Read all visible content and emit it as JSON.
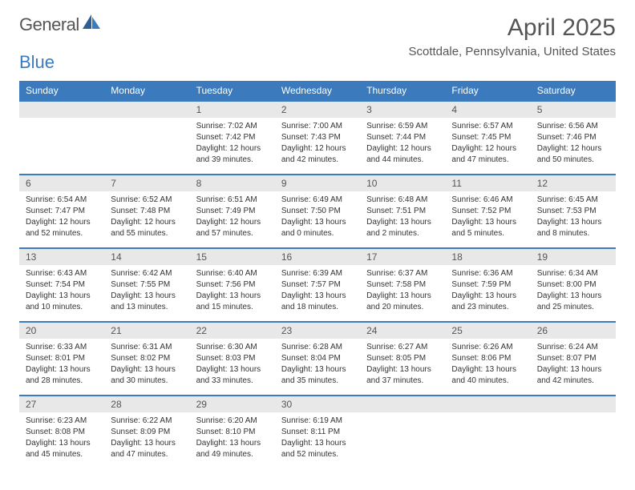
{
  "brand": {
    "part1": "General",
    "part2": "Blue"
  },
  "title": "April 2025",
  "location": "Scottdale, Pennsylvania, United States",
  "colors": {
    "accent": "#3a7abd",
    "gray_bg": "#e8e8e8",
    "text": "#555"
  },
  "weekdays": [
    "Sunday",
    "Monday",
    "Tuesday",
    "Wednesday",
    "Thursday",
    "Friday",
    "Saturday"
  ],
  "weeks": [
    [
      null,
      null,
      {
        "n": "1",
        "sr": "7:02 AM",
        "ss": "7:42 PM",
        "dl": "12 hours and 39 minutes."
      },
      {
        "n": "2",
        "sr": "7:00 AM",
        "ss": "7:43 PM",
        "dl": "12 hours and 42 minutes."
      },
      {
        "n": "3",
        "sr": "6:59 AM",
        "ss": "7:44 PM",
        "dl": "12 hours and 44 minutes."
      },
      {
        "n": "4",
        "sr": "6:57 AM",
        "ss": "7:45 PM",
        "dl": "12 hours and 47 minutes."
      },
      {
        "n": "5",
        "sr": "6:56 AM",
        "ss": "7:46 PM",
        "dl": "12 hours and 50 minutes."
      }
    ],
    [
      {
        "n": "6",
        "sr": "6:54 AM",
        "ss": "7:47 PM",
        "dl": "12 hours and 52 minutes."
      },
      {
        "n": "7",
        "sr": "6:52 AM",
        "ss": "7:48 PM",
        "dl": "12 hours and 55 minutes."
      },
      {
        "n": "8",
        "sr": "6:51 AM",
        "ss": "7:49 PM",
        "dl": "12 hours and 57 minutes."
      },
      {
        "n": "9",
        "sr": "6:49 AM",
        "ss": "7:50 PM",
        "dl": "13 hours and 0 minutes."
      },
      {
        "n": "10",
        "sr": "6:48 AM",
        "ss": "7:51 PM",
        "dl": "13 hours and 2 minutes."
      },
      {
        "n": "11",
        "sr": "6:46 AM",
        "ss": "7:52 PM",
        "dl": "13 hours and 5 minutes."
      },
      {
        "n": "12",
        "sr": "6:45 AM",
        "ss": "7:53 PM",
        "dl": "13 hours and 8 minutes."
      }
    ],
    [
      {
        "n": "13",
        "sr": "6:43 AM",
        "ss": "7:54 PM",
        "dl": "13 hours and 10 minutes."
      },
      {
        "n": "14",
        "sr": "6:42 AM",
        "ss": "7:55 PM",
        "dl": "13 hours and 13 minutes."
      },
      {
        "n": "15",
        "sr": "6:40 AM",
        "ss": "7:56 PM",
        "dl": "13 hours and 15 minutes."
      },
      {
        "n": "16",
        "sr": "6:39 AM",
        "ss": "7:57 PM",
        "dl": "13 hours and 18 minutes."
      },
      {
        "n": "17",
        "sr": "6:37 AM",
        "ss": "7:58 PM",
        "dl": "13 hours and 20 minutes."
      },
      {
        "n": "18",
        "sr": "6:36 AM",
        "ss": "7:59 PM",
        "dl": "13 hours and 23 minutes."
      },
      {
        "n": "19",
        "sr": "6:34 AM",
        "ss": "8:00 PM",
        "dl": "13 hours and 25 minutes."
      }
    ],
    [
      {
        "n": "20",
        "sr": "6:33 AM",
        "ss": "8:01 PM",
        "dl": "13 hours and 28 minutes."
      },
      {
        "n": "21",
        "sr": "6:31 AM",
        "ss": "8:02 PM",
        "dl": "13 hours and 30 minutes."
      },
      {
        "n": "22",
        "sr": "6:30 AM",
        "ss": "8:03 PM",
        "dl": "13 hours and 33 minutes."
      },
      {
        "n": "23",
        "sr": "6:28 AM",
        "ss": "8:04 PM",
        "dl": "13 hours and 35 minutes."
      },
      {
        "n": "24",
        "sr": "6:27 AM",
        "ss": "8:05 PM",
        "dl": "13 hours and 37 minutes."
      },
      {
        "n": "25",
        "sr": "6:26 AM",
        "ss": "8:06 PM",
        "dl": "13 hours and 40 minutes."
      },
      {
        "n": "26",
        "sr": "6:24 AM",
        "ss": "8:07 PM",
        "dl": "13 hours and 42 minutes."
      }
    ],
    [
      {
        "n": "27",
        "sr": "6:23 AM",
        "ss": "8:08 PM",
        "dl": "13 hours and 45 minutes."
      },
      {
        "n": "28",
        "sr": "6:22 AM",
        "ss": "8:09 PM",
        "dl": "13 hours and 47 minutes."
      },
      {
        "n": "29",
        "sr": "6:20 AM",
        "ss": "8:10 PM",
        "dl": "13 hours and 49 minutes."
      },
      {
        "n": "30",
        "sr": "6:19 AM",
        "ss": "8:11 PM",
        "dl": "13 hours and 52 minutes."
      },
      null,
      null,
      null
    ]
  ],
  "labels": {
    "sunrise": "Sunrise:",
    "sunset": "Sunset:",
    "daylight": "Daylight:"
  }
}
